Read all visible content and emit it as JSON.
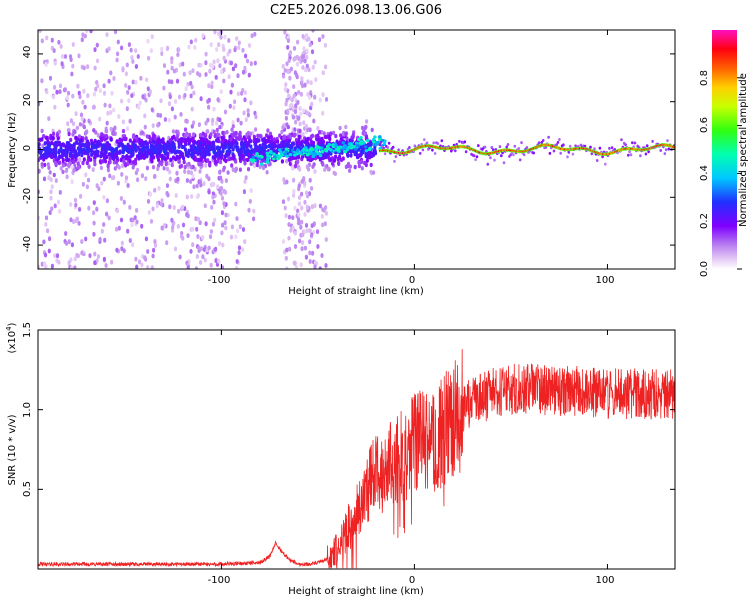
{
  "title": "C2E5.2026.098.13.06.G06",
  "chart_data": [
    {
      "type": "heatmap",
      "title": "C2E5.2026.098.13.06.G06",
      "xlabel": "Height of straight line (km)",
      "ylabel": "Frequency (Hz)",
      "xlim": [
        -195,
        135
      ],
      "ylim": [
        -50,
        50
      ],
      "xticks": [
        -100,
        0,
        100
      ],
      "yticks": [
        -40,
        -20,
        0,
        20,
        40
      ],
      "colorbar": {
        "label": "Normalized spectral amplitude",
        "range": [
          0.0,
          1.0
        ],
        "ticks": [
          "0.0",
          "0.2",
          "0.4",
          "0.6",
          "0.8"
        ],
        "colormap": "rainbow (white-lavender-purple-blue-cyan-green-yellow-orange-red-magenta)"
      },
      "features": [
        {
          "name": "scattered noise",
          "x_range": [
            -195,
            -50
          ],
          "freq_spread_hz": [
            -50,
            50
          ],
          "amplitude": 0.05
        },
        {
          "name": "dense band",
          "x_range": [
            -195,
            -20
          ],
          "freq_center_hz": 0,
          "freq_halfwidth_hz": 8,
          "amplitude": 0.2
        },
        {
          "name": "tracked signal",
          "x_range": [
            -20,
            135
          ],
          "freq_center_hz": 0,
          "freq_halfwidth_hz": 3,
          "amplitude": 0.9
        }
      ]
    },
    {
      "type": "line",
      "xlabel": "Height of straight line (km)",
      "ylabel": "SNR (10 * v/v)",
      "y_multiplier": "(x10",
      "y_multiplier_exp": "4",
      "y_multiplier_close": ")",
      "xlim": [
        -195,
        135
      ],
      "ylim": [
        0,
        1.5
      ],
      "xticks": [
        -100,
        0,
        100
      ],
      "yticks": [
        0.5,
        1.0,
        1.5
      ],
      "series": [
        {
          "name": "SNR",
          "color": "#ee2222",
          "x": [
            -195,
            -150,
            -100,
            -80,
            -75,
            -72,
            -68,
            -65,
            -60,
            -55,
            -50,
            -45,
            -40,
            -35,
            -30,
            -25,
            -20,
            -15,
            -10,
            -5,
            0,
            5,
            10,
            15,
            20,
            25,
            30,
            40,
            50,
            60,
            70,
            80,
            90,
            100,
            110,
            120,
            135
          ],
          "values": [
            0.03,
            0.03,
            0.03,
            0.04,
            0.08,
            0.16,
            0.1,
            0.06,
            0.03,
            0.03,
            0.04,
            0.06,
            0.12,
            0.25,
            0.35,
            0.5,
            0.6,
            0.62,
            0.7,
            0.72,
            0.78,
            0.82,
            0.78,
            0.88,
            0.95,
            1.0,
            1.05,
            1.1,
            1.13,
            1.13,
            1.12,
            1.12,
            1.11,
            1.1,
            1.1,
            1.1,
            1.1
          ]
        }
      ]
    }
  ],
  "tick_labels": {
    "heat_x": [
      "-100",
      "0",
      "100"
    ],
    "heat_y": [
      "40",
      "20",
      "0",
      "-20",
      "-40"
    ],
    "snr_x": [
      "-100",
      "0",
      "100"
    ],
    "snr_y": [
      "1.5",
      "1.0",
      "0.5"
    ]
  },
  "colors": {
    "line": "#ee2222",
    "frame": "#000000"
  }
}
